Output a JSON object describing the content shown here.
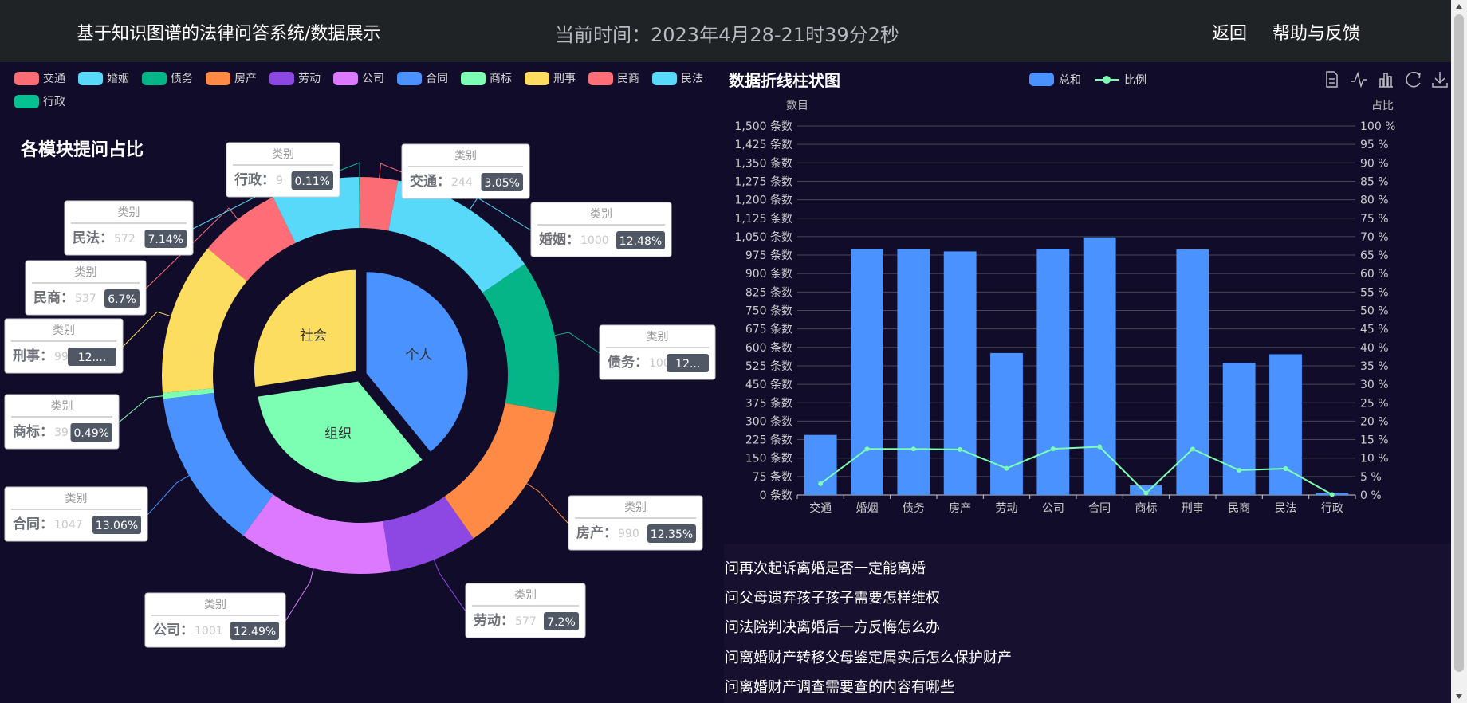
{
  "header": {
    "title": "基于知识图谱的法律问答系统/数据展示",
    "time": "当前时间：2023年4月28-21时39分2秒",
    "back": "返回",
    "help": "帮助与反馈"
  },
  "colors": {
    "交通": "#fc6c75",
    "婚姻": "#58d9f9",
    "债务": "#06b587",
    "房产": "#ff8a45",
    "劳动": "#8d48e3",
    "公司": "#dd79ff",
    "合同": "#4992ff",
    "商标": "#7cffb2",
    "刑事": "#fddd60",
    "民商": "#ff6e76",
    "民法": "#58d9f9",
    "行政": "#05c091",
    "个人": "#4992ff",
    "组织": "#7cffb2",
    "社会": "#fddd60"
  },
  "pie_chart": {
    "title": "各模块提问占比",
    "tooltip_header": "类别",
    "legend": [
      "交通",
      "婚姻",
      "债务",
      "房产",
      "劳动",
      "公司",
      "合同",
      "商标",
      "刑事",
      "民商",
      "民法",
      "行政"
    ],
    "chart_data": {
      "type": "pie",
      "outer_ring": [
        {
          "name": "交通",
          "value": 244,
          "percent": "3.05%"
        },
        {
          "name": "婚姻",
          "value": 1000,
          "percent": "12.48%"
        },
        {
          "name": "债务",
          "value": 1000,
          "percent": "12..."
        },
        {
          "name": "房产",
          "value": 990,
          "percent": "12.35%"
        },
        {
          "name": "劳动",
          "value": 577,
          "percent": "7.2%"
        },
        {
          "name": "公司",
          "value": 1001,
          "percent": "12.49%"
        },
        {
          "name": "合同",
          "value": 1047,
          "percent": "13.06%"
        },
        {
          "name": "商标",
          "value": 39,
          "percent": "0.49%"
        },
        {
          "name": "刑事",
          "value": 998,
          "percent": "12...."
        },
        {
          "name": "民商",
          "value": 537,
          "percent": "6.7%"
        },
        {
          "name": "民法",
          "value": 572,
          "percent": "7.14%"
        },
        {
          "name": "行政",
          "value": 9,
          "percent": "0.11%"
        }
      ],
      "inner_pie": [
        {
          "name": "个人",
          "fraction": 0.385
        },
        {
          "name": "组织",
          "fraction": 0.33
        },
        {
          "name": "社会",
          "fraction": 0.27
        }
      ]
    }
  },
  "bar_chart": {
    "title": "数据折线柱状图",
    "chart_data": {
      "type": "bar",
      "categories": [
        "交通",
        "婚姻",
        "债务",
        "房产",
        "劳动",
        "公司",
        "合同",
        "商标",
        "刑事",
        "民商",
        "民法",
        "行政"
      ],
      "series": [
        {
          "name": "总和",
          "type": "bar",
          "values": [
            244,
            1000,
            1000,
            990,
            577,
            1001,
            1047,
            39,
            998,
            537,
            572,
            9
          ]
        },
        {
          "name": "比例",
          "type": "line",
          "values": [
            3.05,
            12.48,
            12.48,
            12.35,
            7.2,
            12.49,
            13.06,
            0.49,
            12.45,
            6.7,
            7.14,
            0.11
          ]
        }
      ],
      "ylabel": "数目",
      "ylabel_right": "占比",
      "ylim": [
        0,
        1500
      ],
      "ylim_right": [
        0,
        100
      ],
      "yticks": [
        "0 条数",
        "75 条数",
        "150 条数",
        "225 条数",
        "300 条数",
        "375 条数",
        "450 条数",
        "525 条数",
        "600 条数",
        "675 条数",
        "750 条数",
        "825 条数",
        "900 条数",
        "975 条数",
        "1,050 条数",
        "1,125 条数",
        "1,200 条数",
        "1,275 条数",
        "1,350 条数",
        "1,425 条数",
        "1,500 条数"
      ],
      "yticks_right": [
        "0 %",
        "5 %",
        "10 %",
        "15 %",
        "20 %",
        "25 %",
        "30 %",
        "35 %",
        "40 %",
        "45 %",
        "50 %",
        "55 %",
        "60 %",
        "65 %",
        "70 %",
        "75 %",
        "80 %",
        "85 %",
        "90 %",
        "95 %",
        "100 %"
      ],
      "grid": true,
      "legend_position": "top-center",
      "bar_color": "#4992ff",
      "line_color": "#7cffb2"
    },
    "toolbox": [
      "data-view-icon",
      "line-chart-icon",
      "bar-chart-icon",
      "restore-icon",
      "download-icon"
    ]
  },
  "questions": [
    "问再次起诉离婚是否一定能离婚",
    "问父母遗弃孩子孩子需要怎样维权",
    "问法院判决离婚后一方反悔怎么办",
    "问离婚财产转移父母鉴定属实后怎么保护财产",
    "问离婚财产调查需要查的内容有哪些"
  ]
}
